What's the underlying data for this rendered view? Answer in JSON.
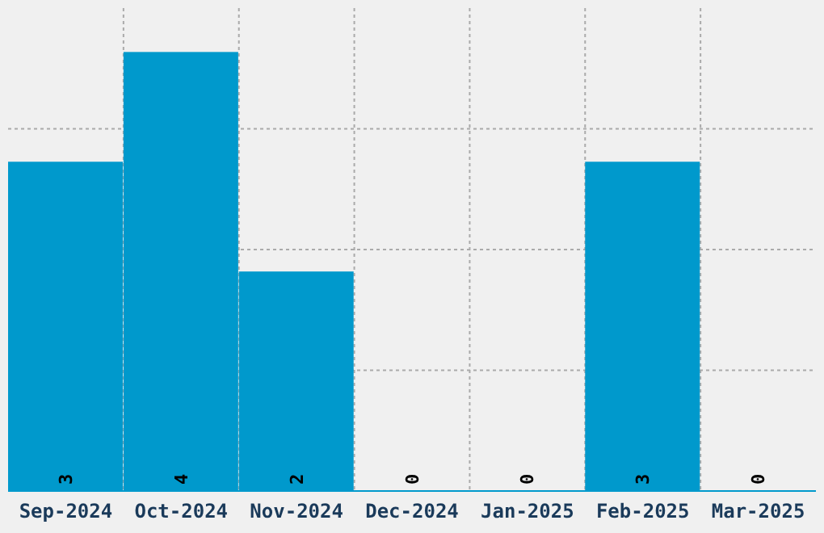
{
  "chart_data": {
    "type": "bar",
    "categories": [
      "Sep-2024",
      "Oct-2024",
      "Nov-2024",
      "Dec-2024",
      "Jan-2025",
      "Feb-2025",
      "Mar-2025"
    ],
    "values": [
      3,
      4,
      2,
      0,
      0,
      3,
      0
    ],
    "color": "#0099cc",
    "ylim": [
      0,
      4.4
    ],
    "grid": true,
    "tick_labels": "x",
    "data_labels": true
  }
}
